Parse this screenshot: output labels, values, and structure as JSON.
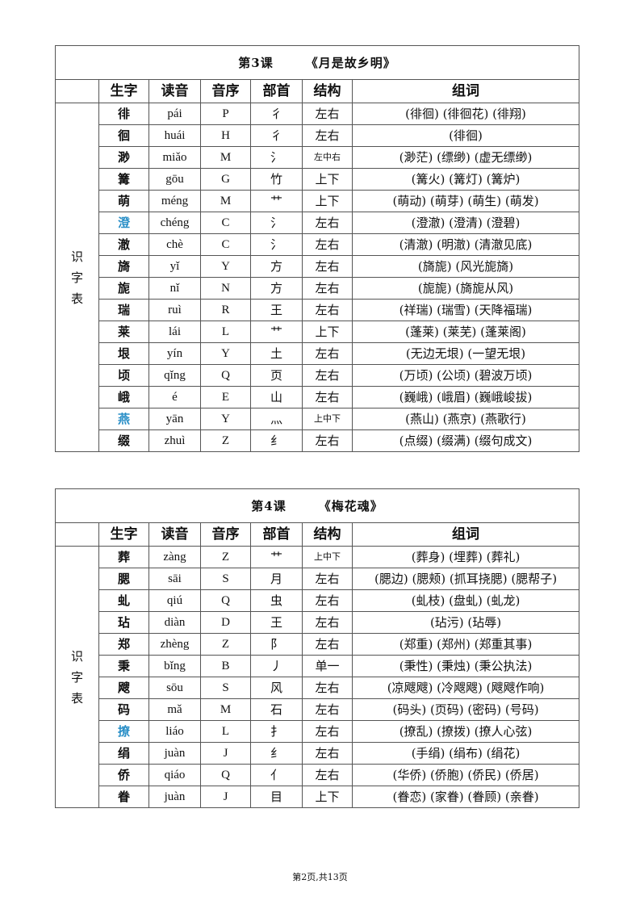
{
  "headers": [
    "生字",
    "读音",
    "音序",
    "部首",
    "结构",
    "组词"
  ],
  "side_label": "识字表",
  "highlight_color": "#2a8fc7",
  "lessons": [
    {
      "number": "第3课",
      "title": "《月是故乡明》",
      "rows": [
        {
          "char": "徘",
          "pinyin": "pái",
          "seq": "P",
          "radical": "彳",
          "structure": "左右",
          "words": "(徘徊) (徘徊花) (徘翔)"
        },
        {
          "char": "徊",
          "pinyin": "huái",
          "seq": "H",
          "radical": "彳",
          "structure": "左右",
          "words": "(徘徊)"
        },
        {
          "char": "渺",
          "pinyin": "miǎo",
          "seq": "M",
          "radical": "氵",
          "structure": "左中右",
          "words": "(渺茫) (缥缈) (虚无缥缈)"
        },
        {
          "char": "篝",
          "pinyin": "gōu",
          "seq": "G",
          "radical": "竹",
          "structure": "上下",
          "words": "(篝火) (篝灯) (篝炉)"
        },
        {
          "char": "萌",
          "pinyin": "méng",
          "seq": "M",
          "radical": "艹",
          "structure": "上下",
          "words": "(萌动) (萌芽) (萌生) (萌发)"
        },
        {
          "char": "澄",
          "pinyin": "chéng",
          "seq": "C",
          "radical": "氵",
          "structure": "左右",
          "words": "(澄澈) (澄清) (澄碧)",
          "highlight": true
        },
        {
          "char": "澈",
          "pinyin": "chè",
          "seq": "C",
          "radical": "氵",
          "structure": "左右",
          "words": "(清澈) (明澈) (清澈见底)"
        },
        {
          "char": "旖",
          "pinyin": "yǐ",
          "seq": "Y",
          "radical": "方",
          "structure": "左右",
          "words": "(旖旎) (风光旎旖)"
        },
        {
          "char": "旎",
          "pinyin": "nǐ",
          "seq": "N",
          "radical": "方",
          "structure": "左右",
          "words": "(旎旎) (旖旎从风)"
        },
        {
          "char": "瑞",
          "pinyin": "ruì",
          "seq": "R",
          "radical": "王",
          "structure": "左右",
          "words": "(祥瑞) (瑞雪) (天降福瑞)"
        },
        {
          "char": "莱",
          "pinyin": "lái",
          "seq": "L",
          "radical": "艹",
          "structure": "上下",
          "words": "(蓬莱) (莱芜) (蓬莱阁)"
        },
        {
          "char": "垠",
          "pinyin": "yín",
          "seq": "Y",
          "radical": "土",
          "structure": "左右",
          "words": "(无边无垠) (一望无垠)"
        },
        {
          "char": "顷",
          "pinyin": "qǐng",
          "seq": "Q",
          "radical": "页",
          "structure": "左右",
          "words": "(万顷) (公顷) (碧波万顷)"
        },
        {
          "char": "峨",
          "pinyin": "é",
          "seq": "E",
          "radical": "山",
          "structure": "左右",
          "words": "(巍峨) (峨眉) (巍峨峻拔)"
        },
        {
          "char": "燕",
          "pinyin": "yān",
          "seq": "Y",
          "radical": "灬",
          "structure": "上中下",
          "words": "(燕山) (燕京) (燕歌行)",
          "highlight": true
        },
        {
          "char": "缀",
          "pinyin": "zhuì",
          "seq": "Z",
          "radical": "纟",
          "structure": "左右",
          "words": "(点缀) (缀满) (缀句成文)"
        }
      ]
    },
    {
      "number": "第4课",
      "title": "《梅花魂》",
      "rows": [
        {
          "char": "葬",
          "pinyin": "zàng",
          "seq": "Z",
          "radical": "艹",
          "structure": "上中下",
          "words": "(葬身) (埋葬) (葬礼)"
        },
        {
          "char": "腮",
          "pinyin": "sāi",
          "seq": "S",
          "radical": "月",
          "structure": "左右",
          "words": "(腮边) (腮颊) (抓耳挠腮) (腮帮子)"
        },
        {
          "char": "虬",
          "pinyin": "qiú",
          "seq": "Q",
          "radical": "虫",
          "structure": "左右",
          "words": "(虬枝) (盘虬) (虬龙)"
        },
        {
          "char": "玷",
          "pinyin": "diàn",
          "seq": "D",
          "radical": "王",
          "structure": "左右",
          "words": "(玷污) (玷辱)"
        },
        {
          "char": "郑",
          "pinyin": "zhèng",
          "seq": "Z",
          "radical": "阝",
          "structure": "左右",
          "words": "(郑重) (郑州) (郑重其事)"
        },
        {
          "char": "秉",
          "pinyin": "bǐng",
          "seq": "B",
          "radical": "丿",
          "structure": "单一",
          "words": "(秉性) (秉烛) (秉公执法)"
        },
        {
          "char": "飕",
          "pinyin": "sōu",
          "seq": "S",
          "radical": "风",
          "structure": "左右",
          "words": "(凉飕飕) (冷飕飕) (飕飕作响)"
        },
        {
          "char": "码",
          "pinyin": "mǎ",
          "seq": "M",
          "radical": "石",
          "structure": "左右",
          "words": "(码头) (页码) (密码) (号码)"
        },
        {
          "char": "撩",
          "pinyin": "liáo",
          "seq": "L",
          "radical": "扌",
          "structure": "左右",
          "words": "(撩乱) (撩拨) (撩人心弦)",
          "highlight": true
        },
        {
          "char": "绢",
          "pinyin": "juàn",
          "seq": "J",
          "radical": "纟",
          "structure": "左右",
          "words": "(手绢) (绢布) (绢花)"
        },
        {
          "char": "侨",
          "pinyin": "qiáo",
          "seq": "Q",
          "radical": "亻",
          "structure": "左右",
          "words": "(华侨) (侨胞) (侨民) (侨居)"
        },
        {
          "char": "眷",
          "pinyin": "juàn",
          "seq": "J",
          "radical": "目",
          "structure": "上下",
          "words": "(眷恋) (家眷) (眷顾) (亲眷)"
        }
      ]
    }
  ],
  "footer": "第2页,共13页"
}
